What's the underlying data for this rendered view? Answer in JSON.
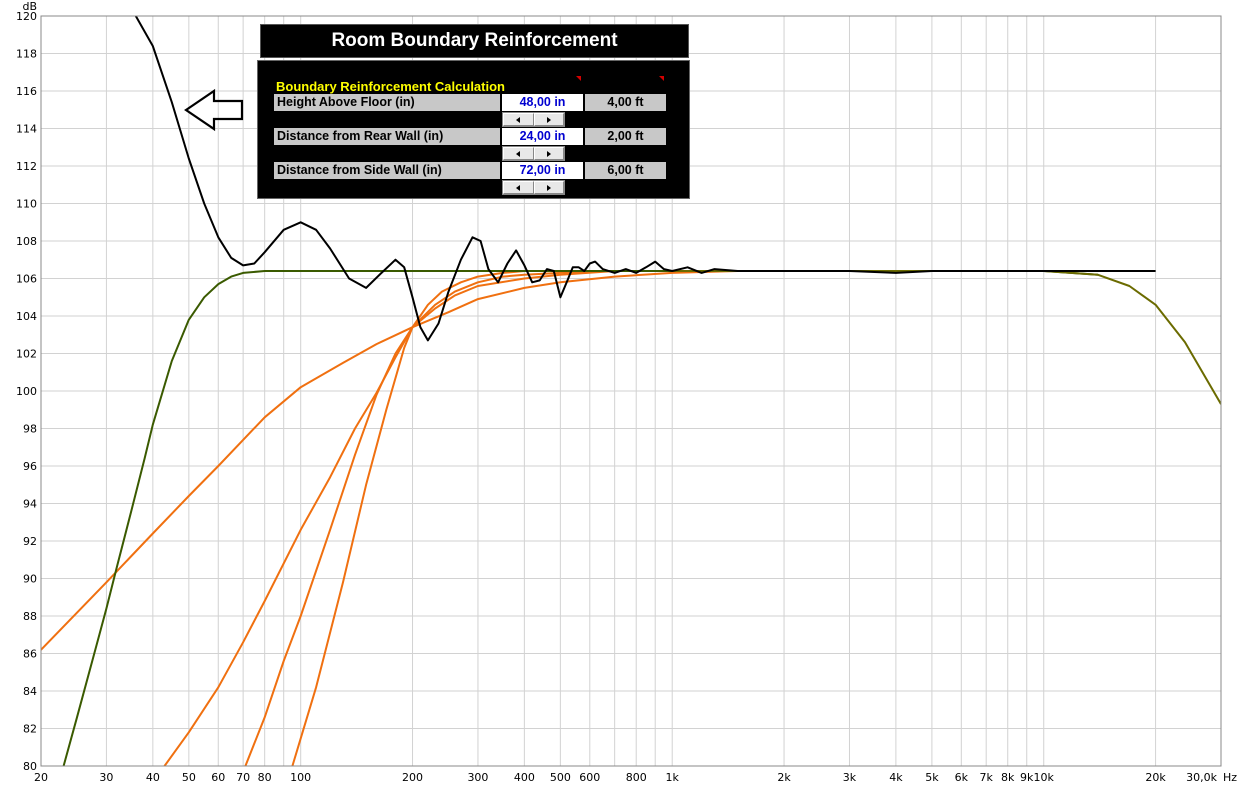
{
  "window": {
    "title": "Room Boundary Reinforcement"
  },
  "panel": {
    "heading": "Boundary Reinforcement Calculation",
    "params": [
      {
        "label": "Height Above Floor (in)",
        "value": "48,00 in",
        "converted": "4,00 ft"
      },
      {
        "label": "Distance from Rear Wall (in)",
        "value": "24,00 in",
        "converted": "2,00 ft"
      },
      {
        "label": "Distance from Side Wall (in)",
        "value": "72,00 in",
        "converted": "6,00 ft"
      }
    ]
  },
  "chart_data": {
    "type": "line",
    "ylabel": "dB",
    "xlabel": "Hz",
    "xscale": "log",
    "xlim": [
      20,
      30000
    ],
    "ylim": [
      80,
      120
    ],
    "grid": true,
    "x_tick_labels": [
      "20",
      "30",
      "40",
      "50",
      "60",
      "70",
      "80",
      "100",
      "200",
      "300",
      "400",
      "500",
      "600",
      "800",
      "1k",
      "2k",
      "3k",
      "4k",
      "5k",
      "6k",
      "7k",
      "8k",
      "9k",
      "10k",
      "20k",
      "30,0k"
    ],
    "y_tick_labels": [
      "80",
      "82",
      "84",
      "86",
      "88",
      "90",
      "92",
      "94",
      "96",
      "98",
      "100",
      "102",
      "104",
      "106",
      "108",
      "110",
      "112",
      "114",
      "116",
      "118",
      "120"
    ],
    "colors": {
      "combined": "#000000",
      "speaker": "#3a5a00",
      "boundaries": "#f07010",
      "rolloff": "#6b6b00",
      "arrow": "#000000"
    },
    "series": [
      {
        "role": "combined",
        "x": [
          36,
          40,
          45,
          50,
          55,
          60,
          65,
          70,
          75,
          80,
          90,
          100,
          110,
          120,
          135,
          150,
          165,
          180,
          190,
          200,
          210,
          220,
          235,
          250,
          270,
          290,
          305,
          320,
          340,
          360,
          380,
          400,
          420,
          440,
          460,
          480,
          500,
          520,
          540,
          560,
          580,
          600,
          620,
          650,
          700,
          750,
          800,
          850,
          900,
          950,
          1000,
          1100,
          1200,
          1300,
          1500,
          1700,
          2000,
          2500,
          3000,
          4000,
          5000,
          7000,
          10000,
          15000,
          20000
        ],
        "y": [
          120,
          118.4,
          115.4,
          112.4,
          110,
          108.2,
          107.1,
          106.7,
          106.8,
          107.4,
          108.6,
          109,
          108.6,
          107.6,
          106,
          105.5,
          106.3,
          107,
          106.6,
          105,
          103.4,
          102.7,
          103.6,
          105.3,
          107,
          108.2,
          108,
          106.5,
          105.8,
          106.8,
          107.5,
          106.7,
          105.8,
          105.9,
          106.5,
          106.4,
          105,
          105.8,
          106.6,
          106.6,
          106.4,
          106.8,
          106.9,
          106.5,
          106.3,
          106.5,
          106.3,
          106.6,
          106.9,
          106.5,
          106.4,
          106.6,
          106.3,
          106.5,
          106.4,
          106.4,
          106.4,
          106.4,
          106.4,
          106.3,
          106.4,
          106.4,
          106.4,
          106.4,
          106.4
        ]
      },
      {
        "role": "speaker",
        "x": [
          23,
          25,
          28,
          30,
          32,
          35,
          38,
          40,
          45,
          50,
          55,
          60,
          65,
          70,
          80,
          100,
          200,
          500,
          1000,
          5000,
          10000,
          14000,
          17000,
          20000,
          24000,
          30000
        ],
        "y": [
          80,
          82.6,
          86.2,
          88.4,
          90.6,
          93.6,
          96.4,
          98.2,
          101.6,
          103.8,
          105,
          105.7,
          106.1,
          106.3,
          106.4,
          106.4,
          106.4,
          106.4,
          106.4,
          106.4,
          106.4,
          106.2,
          105.6,
          104.6,
          102.6,
          99.3
        ]
      },
      {
        "role": "boundary",
        "x": [
          20,
          30,
          40,
          50,
          60,
          80,
          100,
          130,
          160,
          200,
          250,
          300,
          400,
          500,
          700,
          1000,
          1500
        ],
        "y": [
          86.2,
          89.8,
          92.4,
          94.4,
          96,
          98.6,
          100.2,
          101.5,
          102.5,
          103.4,
          104.2,
          104.9,
          105.5,
          105.8,
          106.1,
          106.3,
          106.4
        ]
      },
      {
        "role": "boundary",
        "x": [
          43,
          50,
          60,
          70,
          80,
          100,
          120,
          140,
          160,
          180,
          200,
          230,
          260,
          300,
          400,
          500,
          700,
          1000
        ],
        "y": [
          80,
          81.8,
          84.2,
          86.6,
          88.8,
          92.6,
          95.4,
          98,
          99.9,
          101.8,
          103.4,
          104.4,
          105.1,
          105.6,
          106,
          106.2,
          106.4,
          106.4
        ]
      },
      {
        "role": "boundary",
        "x": [
          71,
          80,
          90,
          100,
          120,
          140,
          160,
          180,
          200,
          230,
          260,
          300,
          350,
          400,
          500,
          700,
          1000
        ],
        "y": [
          80,
          82.6,
          85.6,
          88,
          92.6,
          96.6,
          99.8,
          102,
          103.4,
          104.6,
          105.3,
          105.8,
          106.1,
          106.2,
          106.3,
          106.4,
          106.4
        ]
      },
      {
        "role": "boundary",
        "x": [
          95,
          110,
          130,
          150,
          170,
          190,
          200,
          220,
          240,
          270,
          300,
          350,
          400,
          500,
          700,
          1000
        ],
        "y": [
          80,
          84.2,
          89.8,
          95,
          99,
          102.3,
          103.4,
          104.6,
          105.3,
          105.8,
          106.1,
          106.3,
          106.4,
          106.4,
          106.4,
          106.4
        ]
      }
    ]
  }
}
